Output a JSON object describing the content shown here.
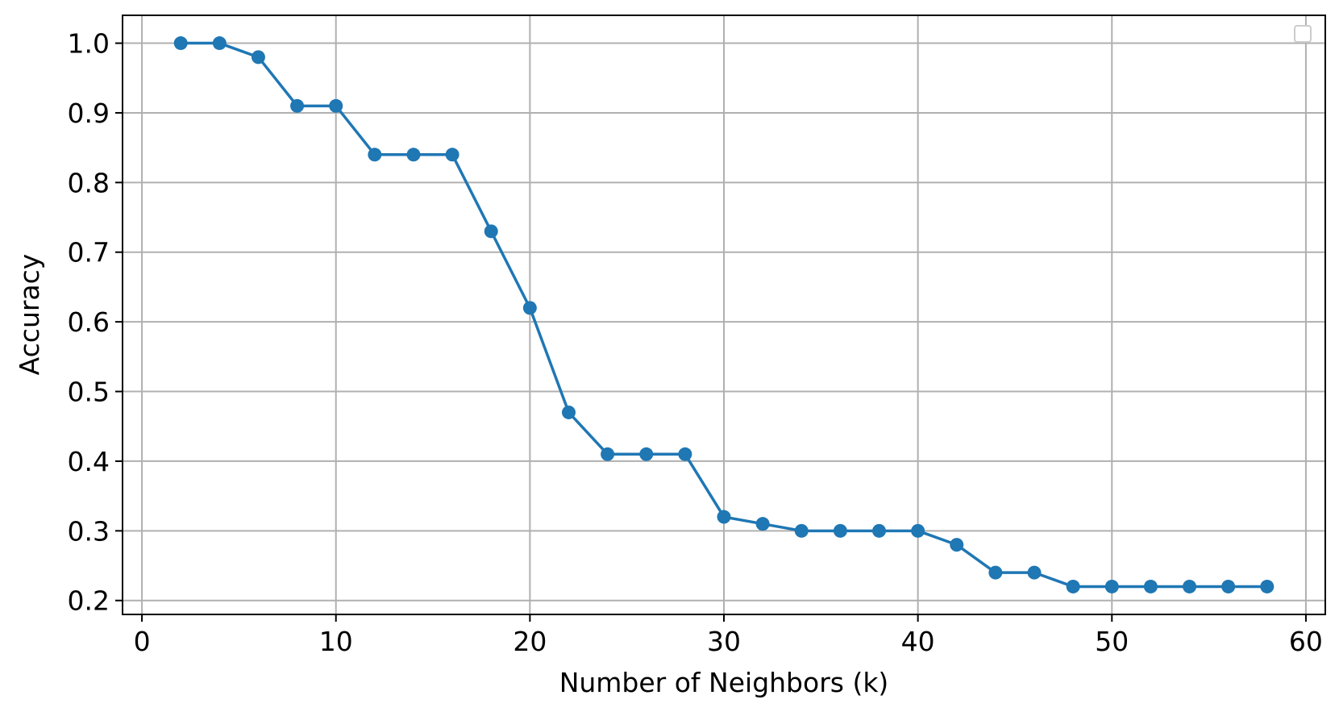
{
  "chart_data": {
    "type": "line",
    "title": "",
    "xlabel": "Number of Neighbors (k)",
    "ylabel": "Accuracy",
    "xlim": [
      -1,
      61
    ],
    "ylim": [
      0.18,
      1.04
    ],
    "xticks": [
      0,
      10,
      20,
      30,
      40,
      50,
      60
    ],
    "xtick_labels": [
      "0",
      "10",
      "20",
      "30",
      "40",
      "50",
      "60"
    ],
    "yticks": [
      0.2,
      0.3,
      0.4,
      0.5,
      0.6,
      0.7,
      0.8,
      0.9,
      1.0
    ],
    "ytick_labels": [
      "0.2",
      "0.3",
      "0.4",
      "0.5",
      "0.6",
      "0.7",
      "0.8",
      "0.9",
      "1.0"
    ],
    "grid": true,
    "legend": "top-right (empty)",
    "marker": "circle",
    "colors": {
      "series": "#1f77b4",
      "grid": "#b0b0b0",
      "axes": "#000000"
    },
    "series": [
      {
        "x": [
          2,
          4,
          6,
          8,
          10,
          12,
          14,
          16,
          18,
          20,
          22,
          24,
          26,
          28,
          30,
          32,
          34,
          36,
          38,
          40,
          42,
          44,
          46,
          48,
          50,
          52,
          54,
          56,
          58
        ],
        "y": [
          1.0,
          1.0,
          0.98,
          0.91,
          0.91,
          0.84,
          0.84,
          0.84,
          0.73,
          0.62,
          0.47,
          0.41,
          0.41,
          0.41,
          0.32,
          0.31,
          0.3,
          0.3,
          0.3,
          0.3,
          0.28,
          0.24,
          0.24,
          0.22,
          0.22,
          0.22,
          0.22,
          0.22,
          0.22
        ]
      }
    ]
  }
}
